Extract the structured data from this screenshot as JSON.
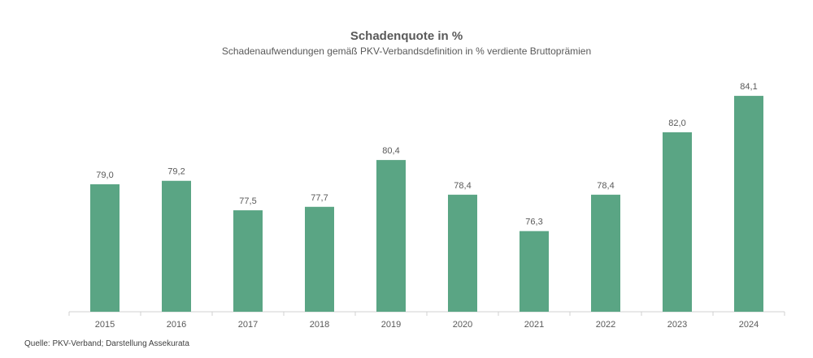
{
  "chart_data": {
    "type": "bar",
    "title": "Schadenquote in %",
    "subtitle": "Schadenaufwendungen gemäß PKV-Verbandsdefinition in % verdiente Bruttoprämien",
    "categories": [
      "2015",
      "2016",
      "2017",
      "2018",
      "2019",
      "2020",
      "2021",
      "2022",
      "2023",
      "2024"
    ],
    "values": [
      79.0,
      79.2,
      77.5,
      77.7,
      80.4,
      78.4,
      76.3,
      78.4,
      82.0,
      84.1
    ],
    "value_labels": [
      "79,0",
      "79,2",
      "77,5",
      "77,7",
      "80,4",
      "78,4",
      "76,3",
      "78,4",
      "82,0",
      "84,1"
    ],
    "xlabel": "",
    "ylabel": "",
    "ylim": [
      71.65,
      84.9
    ],
    "grid": false,
    "legend": "none",
    "bar_color": "#5aa584"
  },
  "source": "Quelle: PKV-Verband; Darstellung Assekurata"
}
